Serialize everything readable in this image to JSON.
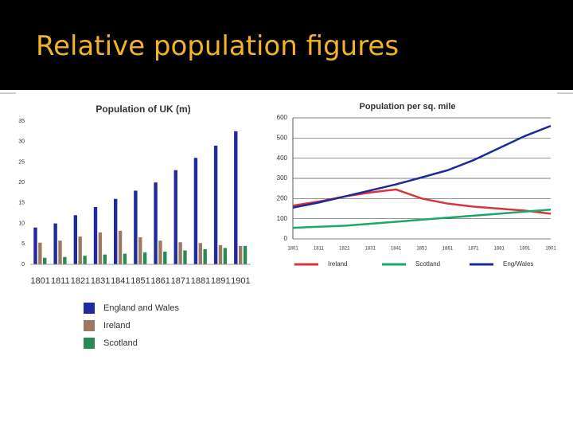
{
  "title": "Relative population figures",
  "chart_data": [
    {
      "type": "bar",
      "title": "Population of UK (m)",
      "categories": [
        "1801",
        "1811",
        "1821",
        "1831",
        "1841",
        "1851",
        "1861",
        "1871",
        "1881",
        "1891",
        "1901"
      ],
      "series": [
        {
          "name": "England and Wales",
          "color": "#1f2aa0",
          "values": [
            9,
            10,
            12,
            14,
            16,
            18,
            20,
            23,
            26,
            29,
            32.5
          ]
        },
        {
          "name": "Ireland",
          "color": "#9c7a62",
          "values": [
            5.3,
            5.8,
            6.8,
            7.8,
            8.2,
            6.6,
            5.8,
            5.4,
            5.2,
            4.7,
            4.5
          ]
        },
        {
          "name": "Scotland",
          "color": "#2a8a52",
          "values": [
            1.6,
            1.8,
            2.1,
            2.4,
            2.6,
            2.9,
            3.1,
            3.4,
            3.7,
            4.0,
            4.5
          ]
        }
      ],
      "ylim": [
        0,
        35
      ],
      "yticks": [
        0,
        5,
        10,
        15,
        20,
        25,
        30,
        35
      ],
      "grid": false
    },
    {
      "type": "line",
      "title": "Population per sq. mile",
      "categories": [
        "1801",
        "1811",
        "1821",
        "1831",
        "1841",
        "1851",
        "1861",
        "1871",
        "1881",
        "1891",
        "1901"
      ],
      "series": [
        {
          "name": "Ireland",
          "color": "#d8343c",
          "values": [
            165,
            185,
            210,
            230,
            245,
            200,
            175,
            160,
            150,
            140,
            125
          ]
        },
        {
          "name": "Scotland",
          "color": "#1aa868",
          "values": [
            55,
            60,
            65,
            75,
            85,
            95,
            105,
            115,
            125,
            135,
            145
          ]
        },
        {
          "name": "Eng/Wales",
          "color": "#1a2a9a",
          "values": [
            155,
            180,
            210,
            240,
            270,
            305,
            340,
            390,
            450,
            510,
            560
          ]
        }
      ],
      "ylim": [
        0,
        600
      ],
      "yticks": [
        0,
        100,
        200,
        300,
        400,
        500,
        600
      ],
      "grid": true
    }
  ]
}
